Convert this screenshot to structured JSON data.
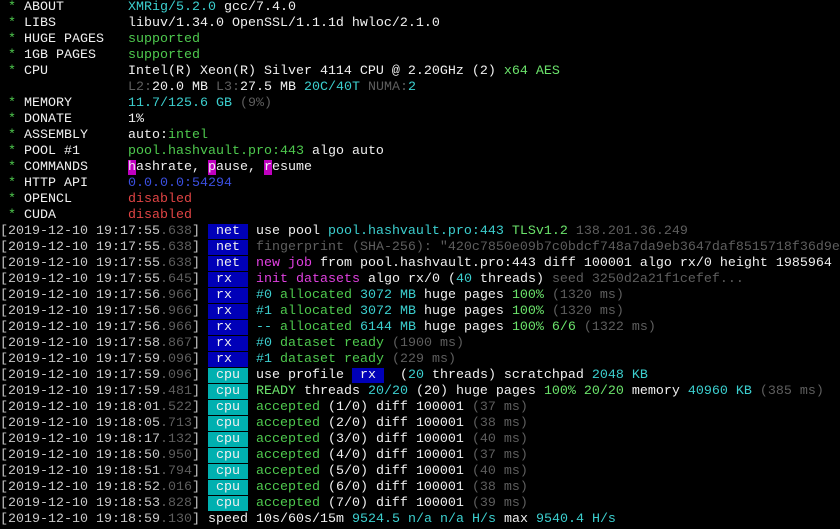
{
  "colors": {
    "tag_net_rx_bg": "#0000b8",
    "tag_cpu_bg": "#00b0b0",
    "green": "#4ec94e",
    "cyan": "#3ccfcf",
    "gray": "#5e5e5e",
    "red": "#e04444",
    "magenta": "#e040e0",
    "blue": "#3b4fe0",
    "background": "#000000"
  },
  "lines": [
    [
      {
        "t": " * ",
        "c": "g"
      },
      {
        "t": "ABOUT        ",
        "c": "W"
      },
      {
        "t": "XMRig/5.2.0",
        "c": "c"
      },
      {
        "t": " gcc/7.4.0",
        "c": "W"
      }
    ],
    [
      {
        "t": " * ",
        "c": "g"
      },
      {
        "t": "LIBS         ",
        "c": "W"
      },
      {
        "t": "libuv/1.34.0 OpenSSL/1.1.1d hwloc/2.1.0",
        "c": "W"
      }
    ],
    [
      {
        "t": " * ",
        "c": "g"
      },
      {
        "t": "HUGE PAGES   ",
        "c": "W"
      },
      {
        "t": "supported",
        "c": "g"
      }
    ],
    [
      {
        "t": " * ",
        "c": "g"
      },
      {
        "t": "1GB PAGES    ",
        "c": "W"
      },
      {
        "t": "supported",
        "c": "g"
      }
    ],
    [
      {
        "t": " * ",
        "c": "g"
      },
      {
        "t": "CPU          ",
        "c": "W"
      },
      {
        "t": "Intel(R) Xeon(R) Silver 4114 CPU @ 2.20GHz (2) ",
        "c": "W"
      },
      {
        "t": "x64 AES",
        "c": "G"
      }
    ],
    [
      {
        "t": "                ",
        "c": "w"
      },
      {
        "t": "L2:",
        "c": "d"
      },
      {
        "t": "20.0 MB ",
        "c": "W"
      },
      {
        "t": "L3:",
        "c": "d"
      },
      {
        "t": "27.5 MB ",
        "c": "W"
      },
      {
        "t": "20C/40T ",
        "c": "c"
      },
      {
        "t": "NUMA:",
        "c": "d"
      },
      {
        "t": "2",
        "c": "c"
      }
    ],
    [
      {
        "t": " * ",
        "c": "g"
      },
      {
        "t": "MEMORY       ",
        "c": "W"
      },
      {
        "t": "11.7/125.6 GB ",
        "c": "c"
      },
      {
        "t": "(9%)",
        "c": "d"
      }
    ],
    [
      {
        "t": " * ",
        "c": "g"
      },
      {
        "t": "DONATE       ",
        "c": "W"
      },
      {
        "t": "1%",
        "c": "W"
      }
    ],
    [
      {
        "t": " * ",
        "c": "g"
      },
      {
        "t": "ASSEMBLY     ",
        "c": "W"
      },
      {
        "t": "auto:",
        "c": "W"
      },
      {
        "t": "intel",
        "c": "g"
      }
    ],
    [
      {
        "t": " * ",
        "c": "g"
      },
      {
        "t": "POOL #1      ",
        "c": "W"
      },
      {
        "t": "pool.hashvault.pro:443",
        "c": "g"
      },
      {
        "t": " algo auto",
        "c": "W"
      }
    ],
    [
      {
        "t": " * ",
        "c": "g"
      },
      {
        "t": "COMMANDS     ",
        "c": "W"
      },
      {
        "t": "h",
        "c": "hlm"
      },
      {
        "t": "ashrate, ",
        "c": "W"
      },
      {
        "t": "p",
        "c": "hlm"
      },
      {
        "t": "ause, ",
        "c": "W"
      },
      {
        "t": "r",
        "c": "hlm"
      },
      {
        "t": "esume",
        "c": "W"
      }
    ],
    [
      {
        "t": " * ",
        "c": "g"
      },
      {
        "t": "HTTP API     ",
        "c": "W"
      },
      {
        "t": "0.0.0.0:54294",
        "c": "b"
      }
    ],
    [
      {
        "t": " * ",
        "c": "g"
      },
      {
        "t": "OPENCL       ",
        "c": "W"
      },
      {
        "t": "disabled",
        "c": "r"
      }
    ],
    [
      {
        "t": " * ",
        "c": "g"
      },
      {
        "t": "CUDA         ",
        "c": "W"
      },
      {
        "t": "disabled",
        "c": "r"
      }
    ],
    [
      {
        "t": "[2019-12-10 19:17:55",
        "c": "w"
      },
      {
        "t": ".638",
        "c": "d"
      },
      {
        "t": "] ",
        "c": "w"
      },
      {
        "t": " net ",
        "c": "tagb"
      },
      {
        "t": " use pool ",
        "c": "W"
      },
      {
        "t": "pool.hashvault.pro:443 ",
        "c": "c"
      },
      {
        "t": "TLSv1.2 ",
        "c": "G"
      },
      {
        "t": "138.201.36.249",
        "c": "d"
      }
    ],
    [
      {
        "t": "[2019-12-10 19:17:55",
        "c": "w"
      },
      {
        "t": ".638",
        "c": "d"
      },
      {
        "t": "] ",
        "c": "w"
      },
      {
        "t": " net ",
        "c": "tagb"
      },
      {
        "t": " fingerprint (SHA-256): \"420c7850e09b7c0bdcf748a7da9eb3647daf8515718f36d9e",
        "c": "d"
      }
    ],
    [
      {
        "t": "[2019-12-10 19:17:55",
        "c": "w"
      },
      {
        "t": ".638",
        "c": "d"
      },
      {
        "t": "] ",
        "c": "w"
      },
      {
        "t": " net ",
        "c": "tagb"
      },
      {
        "t": " new job",
        "c": "m"
      },
      {
        "t": " from pool.hashvault.pro:443 diff 100001 algo rx/0 height 1985964",
        "c": "W"
      }
    ],
    [
      {
        "t": "[2019-12-10 19:17:55",
        "c": "w"
      },
      {
        "t": ".645",
        "c": "d"
      },
      {
        "t": "] ",
        "c": "w"
      },
      {
        "t": " rx  ",
        "c": "tagb"
      },
      {
        "t": " init datasets",
        "c": "m"
      },
      {
        "t": " algo ",
        "c": "W"
      },
      {
        "t": "rx/0",
        "c": "W"
      },
      {
        "t": " (",
        "c": "W"
      },
      {
        "t": "40",
        "c": "c"
      },
      {
        "t": " threads) ",
        "c": "W"
      },
      {
        "t": "seed 3250d2a21f1cefef...",
        "c": "d"
      }
    ],
    [
      {
        "t": "[2019-12-10 19:17:56",
        "c": "w"
      },
      {
        "t": ".966",
        "c": "d"
      },
      {
        "t": "] ",
        "c": "w"
      },
      {
        "t": " rx  ",
        "c": "tagb"
      },
      {
        "t": " #0",
        "c": "c"
      },
      {
        "t": " allocated ",
        "c": "g"
      },
      {
        "t": "3072 MB",
        "c": "c"
      },
      {
        "t": " huge pages ",
        "c": "W"
      },
      {
        "t": "100% ",
        "c": "G"
      },
      {
        "t": "(1320 ms)",
        "c": "d"
      }
    ],
    [
      {
        "t": "[2019-12-10 19:17:56",
        "c": "w"
      },
      {
        "t": ".966",
        "c": "d"
      },
      {
        "t": "] ",
        "c": "w"
      },
      {
        "t": " rx  ",
        "c": "tagb"
      },
      {
        "t": " #1",
        "c": "c"
      },
      {
        "t": " allocated ",
        "c": "g"
      },
      {
        "t": "3072 MB",
        "c": "c"
      },
      {
        "t": " huge pages ",
        "c": "W"
      },
      {
        "t": "100% ",
        "c": "G"
      },
      {
        "t": "(1320 ms)",
        "c": "d"
      }
    ],
    [
      {
        "t": "[2019-12-10 19:17:56",
        "c": "w"
      },
      {
        "t": ".966",
        "c": "d"
      },
      {
        "t": "] ",
        "c": "w"
      },
      {
        "t": " rx  ",
        "c": "tagb"
      },
      {
        "t": " --",
        "c": "c"
      },
      {
        "t": " allocated ",
        "c": "g"
      },
      {
        "t": "6144 MB",
        "c": "c"
      },
      {
        "t": " huge pages ",
        "c": "W"
      },
      {
        "t": "100% 6/6 ",
        "c": "G"
      },
      {
        "t": "(1322 ms)",
        "c": "d"
      }
    ],
    [
      {
        "t": "[2019-12-10 19:17:58",
        "c": "w"
      },
      {
        "t": ".867",
        "c": "d"
      },
      {
        "t": "] ",
        "c": "w"
      },
      {
        "t": " rx  ",
        "c": "tagb"
      },
      {
        "t": " #0",
        "c": "c"
      },
      {
        "t": " dataset ready ",
        "c": "g"
      },
      {
        "t": "(1900 ms)",
        "c": "d"
      }
    ],
    [
      {
        "t": "[2019-12-10 19:17:59",
        "c": "w"
      },
      {
        "t": ".096",
        "c": "d"
      },
      {
        "t": "] ",
        "c": "w"
      },
      {
        "t": " rx  ",
        "c": "tagb"
      },
      {
        "t": " #1",
        "c": "c"
      },
      {
        "t": " dataset ready ",
        "c": "g"
      },
      {
        "t": "(229 ms)",
        "c": "d"
      }
    ],
    [
      {
        "t": "[2019-12-10 19:17:59",
        "c": "w"
      },
      {
        "t": ".096",
        "c": "d"
      },
      {
        "t": "] ",
        "c": "w"
      },
      {
        "t": " cpu ",
        "c": "tagc"
      },
      {
        "t": " use profile ",
        "c": "W"
      },
      {
        "t": " rx ",
        "c": "hlb"
      },
      {
        "t": "  (",
        "c": "W"
      },
      {
        "t": "20",
        "c": "c"
      },
      {
        "t": " threads) scratchpad ",
        "c": "W"
      },
      {
        "t": "2048 KB",
        "c": "c"
      }
    ],
    [
      {
        "t": "[2019-12-10 19:17:59",
        "c": "w"
      },
      {
        "t": ".481",
        "c": "d"
      },
      {
        "t": "] ",
        "c": "w"
      },
      {
        "t": " cpu ",
        "c": "tagc"
      },
      {
        "t": " READY",
        "c": "G"
      },
      {
        "t": " threads ",
        "c": "W"
      },
      {
        "t": "20/20",
        "c": "c"
      },
      {
        "t": " (20) huge pages ",
        "c": "W"
      },
      {
        "t": "100% 20/20",
        "c": "G"
      },
      {
        "t": " memory ",
        "c": "W"
      },
      {
        "t": "40960 KB ",
        "c": "c"
      },
      {
        "t": "(385 ms)",
        "c": "d"
      }
    ],
    [
      {
        "t": "[2019-12-10 19:18:01",
        "c": "w"
      },
      {
        "t": ".522",
        "c": "d"
      },
      {
        "t": "] ",
        "c": "w"
      },
      {
        "t": " cpu ",
        "c": "tagc"
      },
      {
        "t": " accepted",
        "c": "g"
      },
      {
        "t": " (1/0) diff ",
        "c": "W"
      },
      {
        "t": "100001 ",
        "c": "W"
      },
      {
        "t": "(37 ms)",
        "c": "d"
      }
    ],
    [
      {
        "t": "[2019-12-10 19:18:05",
        "c": "w"
      },
      {
        "t": ".713",
        "c": "d"
      },
      {
        "t": "] ",
        "c": "w"
      },
      {
        "t": " cpu ",
        "c": "tagc"
      },
      {
        "t": " accepted",
        "c": "g"
      },
      {
        "t": " (2/0) diff ",
        "c": "W"
      },
      {
        "t": "100001 ",
        "c": "W"
      },
      {
        "t": "(38 ms)",
        "c": "d"
      }
    ],
    [
      {
        "t": "[2019-12-10 19:18:17",
        "c": "w"
      },
      {
        "t": ".132",
        "c": "d"
      },
      {
        "t": "] ",
        "c": "w"
      },
      {
        "t": " cpu ",
        "c": "tagc"
      },
      {
        "t": " accepted",
        "c": "g"
      },
      {
        "t": " (3/0) diff ",
        "c": "W"
      },
      {
        "t": "100001 ",
        "c": "W"
      },
      {
        "t": "(40 ms)",
        "c": "d"
      }
    ],
    [
      {
        "t": "[2019-12-10 19:18:50",
        "c": "w"
      },
      {
        "t": ".950",
        "c": "d"
      },
      {
        "t": "] ",
        "c": "w"
      },
      {
        "t": " cpu ",
        "c": "tagc"
      },
      {
        "t": " accepted",
        "c": "g"
      },
      {
        "t": " (4/0) diff ",
        "c": "W"
      },
      {
        "t": "100001 ",
        "c": "W"
      },
      {
        "t": "(37 ms)",
        "c": "d"
      }
    ],
    [
      {
        "t": "[2019-12-10 19:18:51",
        "c": "w"
      },
      {
        "t": ".794",
        "c": "d"
      },
      {
        "t": "] ",
        "c": "w"
      },
      {
        "t": " cpu ",
        "c": "tagc"
      },
      {
        "t": " accepted",
        "c": "g"
      },
      {
        "t": " (5/0) diff ",
        "c": "W"
      },
      {
        "t": "100001 ",
        "c": "W"
      },
      {
        "t": "(40 ms)",
        "c": "d"
      }
    ],
    [
      {
        "t": "[2019-12-10 19:18:52",
        "c": "w"
      },
      {
        "t": ".016",
        "c": "d"
      },
      {
        "t": "] ",
        "c": "w"
      },
      {
        "t": " cpu ",
        "c": "tagc"
      },
      {
        "t": " accepted",
        "c": "g"
      },
      {
        "t": " (6/0) diff ",
        "c": "W"
      },
      {
        "t": "100001 ",
        "c": "W"
      },
      {
        "t": "(38 ms)",
        "c": "d"
      }
    ],
    [
      {
        "t": "[2019-12-10 19:18:53",
        "c": "w"
      },
      {
        "t": ".828",
        "c": "d"
      },
      {
        "t": "] ",
        "c": "w"
      },
      {
        "t": " cpu ",
        "c": "tagc"
      },
      {
        "t": " accepted",
        "c": "g"
      },
      {
        "t": " (7/0) diff ",
        "c": "W"
      },
      {
        "t": "100001 ",
        "c": "W"
      },
      {
        "t": "(39 ms)",
        "c": "d"
      }
    ],
    [
      {
        "t": "[2019-12-10 19:18:59",
        "c": "w"
      },
      {
        "t": ".130",
        "c": "d"
      },
      {
        "t": "] ",
        "c": "w"
      },
      {
        "t": "speed",
        "c": "W"
      },
      {
        "t": " 10s/60s/15m ",
        "c": "W"
      },
      {
        "t": "9524.5",
        "c": "c"
      },
      {
        "t": " n/a n/a",
        "c": "c"
      },
      {
        "t": " H/s",
        "c": "c"
      },
      {
        "t": " max ",
        "c": "W"
      },
      {
        "t": "9540.4 H/s",
        "c": "c"
      }
    ]
  ]
}
